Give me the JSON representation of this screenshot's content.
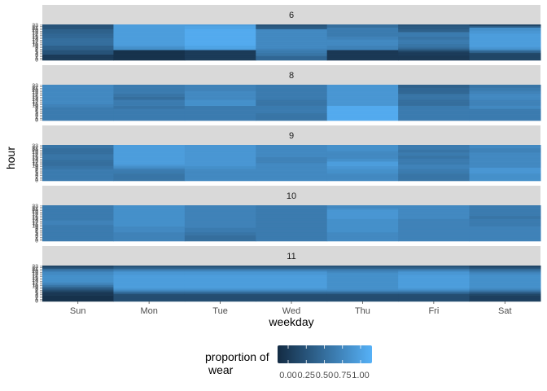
{
  "chart_data": {
    "type": "heatmap",
    "x_label": "weekday",
    "y_label": "hour",
    "x_categories": [
      "Sun",
      "Mon",
      "Tue",
      "Wed",
      "Thu",
      "Fri",
      "Sat"
    ],
    "y_tick_labels": [
      "0",
      "1",
      "2",
      "3",
      "4",
      "5",
      "6",
      "7",
      "8",
      "9",
      "10",
      "11",
      "12",
      "13",
      "14",
      "15",
      "16",
      "17",
      "18",
      "19",
      "20",
      "21",
      "22",
      "23"
    ],
    "legend": {
      "title_line1": "proportion of",
      "title_line2": "wear",
      "position": "bottom",
      "breaks": [
        "0.00",
        "0.25",
        "0.50",
        "0.75",
        "1.00"
      ],
      "color_low": "#132B43",
      "color_high": "#56B1F7",
      "range": [
        0,
        1
      ]
    },
    "facets": [
      {
        "label": "6",
        "values": [
          [
            0.12,
            0.12,
            0.12,
            0.12,
            0.3,
            0.3,
            0.3,
            0.4,
            0.4,
            0.4,
            0.5,
            0.5,
            0.5,
            0.5,
            0.5,
            0.45,
            0.45,
            0.45,
            0.4,
            0.4,
            0.4,
            0.3,
            0.3,
            0.3
          ],
          [
            0.05,
            0.05,
            0.05,
            0.05,
            0.05,
            0.05,
            0.05,
            0.75,
            0.75,
            0.8,
            0.85,
            0.85,
            0.85,
            0.85,
            0.85,
            0.85,
            0.85,
            0.85,
            0.85,
            0.85,
            0.85,
            0.85,
            0.85,
            0.85
          ],
          [
            0.12,
            0.12,
            0.12,
            0.12,
            0.12,
            0.12,
            0.12,
            0.85,
            0.9,
            0.9,
            0.95,
            0.95,
            0.95,
            0.95,
            0.95,
            0.95,
            0.95,
            0.95,
            0.95,
            0.95,
            0.95,
            0.9,
            0.9,
            0.85
          ],
          [
            0.45,
            0.45,
            0.45,
            0.55,
            0.55,
            0.6,
            0.6,
            0.65,
            0.7,
            0.7,
            0.7,
            0.7,
            0.7,
            0.7,
            0.7,
            0.7,
            0.7,
            0.7,
            0.7,
            0.7,
            0.7,
            0.35,
            0.35,
            0.3
          ],
          [
            0.1,
            0.1,
            0.1,
            0.1,
            0.1,
            0.1,
            0.1,
            0.65,
            0.65,
            0.65,
            0.7,
            0.7,
            0.7,
            0.7,
            0.65,
            0.65,
            0.6,
            0.6,
            0.6,
            0.6,
            0.6,
            0.6,
            0.5,
            0.5
          ],
          [
            0.1,
            0.1,
            0.1,
            0.12,
            0.12,
            0.15,
            0.25,
            0.4,
            0.5,
            0.55,
            0.55,
            0.6,
            0.6,
            0.6,
            0.55,
            0.55,
            0.6,
            0.6,
            0.6,
            0.4,
            0.4,
            0.35,
            0.35,
            0.3
          ],
          [
            0.2,
            0.2,
            0.2,
            0.2,
            0.2,
            0.4,
            0.5,
            0.75,
            0.8,
            0.85,
            0.85,
            0.85,
            0.85,
            0.85,
            0.85,
            0.85,
            0.85,
            0.85,
            0.8,
            0.8,
            0.75,
            0.75,
            0.4,
            0.2
          ]
        ]
      },
      {
        "label": "8",
        "values": [
          [
            0.6,
            0.6,
            0.6,
            0.6,
            0.6,
            0.6,
            0.6,
            0.6,
            0.6,
            0.65,
            0.65,
            0.7,
            0.7,
            0.7,
            0.7,
            0.7,
            0.7,
            0.7,
            0.7,
            0.7,
            0.7,
            0.7,
            0.7,
            0.7
          ],
          [
            0.6,
            0.6,
            0.6,
            0.6,
            0.6,
            0.6,
            0.6,
            0.6,
            0.55,
            0.55,
            0.6,
            0.6,
            0.6,
            0.6,
            0.5,
            0.5,
            0.55,
            0.55,
            0.6,
            0.6,
            0.6,
            0.6,
            0.6,
            0.6
          ],
          [
            0.6,
            0.6,
            0.6,
            0.6,
            0.6,
            0.6,
            0.6,
            0.6,
            0.6,
            0.6,
            0.75,
            0.75,
            0.75,
            0.75,
            0.7,
            0.7,
            0.7,
            0.7,
            0.7,
            0.7,
            0.65,
            0.65,
            0.65,
            0.65
          ],
          [
            0.55,
            0.55,
            0.55,
            0.55,
            0.55,
            0.6,
            0.6,
            0.6,
            0.6,
            0.6,
            0.55,
            0.55,
            0.55,
            0.55,
            0.6,
            0.6,
            0.6,
            0.6,
            0.6,
            0.6,
            0.6,
            0.6,
            0.6,
            0.6
          ],
          [
            0.95,
            0.95,
            0.95,
            0.95,
            0.95,
            0.95,
            0.95,
            0.95,
            0.95,
            0.95,
            0.8,
            0.8,
            0.8,
            0.8,
            0.8,
            0.8,
            0.8,
            0.8,
            0.8,
            0.8,
            0.8,
            0.8,
            0.8,
            0.8
          ],
          [
            0.6,
            0.6,
            0.6,
            0.6,
            0.6,
            0.6,
            0.6,
            0.6,
            0.6,
            0.6,
            0.5,
            0.5,
            0.5,
            0.5,
            0.55,
            0.55,
            0.55,
            0.55,
            0.45,
            0.45,
            0.45,
            0.45,
            0.4,
            0.4
          ],
          [
            0.6,
            0.6,
            0.6,
            0.6,
            0.6,
            0.6,
            0.6,
            0.6,
            0.7,
            0.7,
            0.65,
            0.65,
            0.65,
            0.65,
            0.7,
            0.7,
            0.7,
            0.7,
            0.65,
            0.65,
            0.6,
            0.6,
            0.55,
            0.55
          ]
        ]
      },
      {
        "label": "9",
        "values": [
          [
            0.6,
            0.6,
            0.6,
            0.6,
            0.6,
            0.6,
            0.6,
            0.6,
            0.55,
            0.55,
            0.5,
            0.5,
            0.5,
            0.5,
            0.55,
            0.55,
            0.55,
            0.55,
            0.5,
            0.5,
            0.5,
            0.5,
            0.55,
            0.55
          ],
          [
            0.55,
            0.55,
            0.55,
            0.55,
            0.55,
            0.6,
            0.6,
            0.6,
            0.7,
            0.75,
            0.8,
            0.85,
            0.85,
            0.85,
            0.85,
            0.85,
            0.85,
            0.85,
            0.85,
            0.85,
            0.85,
            0.85,
            0.85,
            0.85
          ],
          [
            0.7,
            0.7,
            0.7,
            0.7,
            0.7,
            0.7,
            0.7,
            0.7,
            0.75,
            0.75,
            0.8,
            0.8,
            0.8,
            0.8,
            0.8,
            0.8,
            0.8,
            0.8,
            0.8,
            0.8,
            0.8,
            0.8,
            0.8,
            0.8
          ],
          [
            0.7,
            0.7,
            0.7,
            0.7,
            0.7,
            0.7,
            0.7,
            0.7,
            0.7,
            0.7,
            0.7,
            0.7,
            0.65,
            0.65,
            0.65,
            0.65,
            0.7,
            0.7,
            0.7,
            0.7,
            0.7,
            0.7,
            0.7,
            0.7
          ],
          [
            0.7,
            0.7,
            0.7,
            0.7,
            0.7,
            0.75,
            0.75,
            0.75,
            0.8,
            0.8,
            0.85,
            0.85,
            0.85,
            0.75,
            0.75,
            0.7,
            0.7,
            0.7,
            0.7,
            0.7,
            0.75,
            0.75,
            0.75,
            0.75
          ],
          [
            0.55,
            0.55,
            0.55,
            0.55,
            0.55,
            0.6,
            0.6,
            0.6,
            0.65,
            0.65,
            0.65,
            0.6,
            0.6,
            0.6,
            0.6,
            0.55,
            0.55,
            0.6,
            0.6,
            0.55,
            0.55,
            0.6,
            0.6,
            0.6
          ],
          [
            0.75,
            0.75,
            0.75,
            0.75,
            0.75,
            0.8,
            0.8,
            0.8,
            0.8,
            0.7,
            0.7,
            0.7,
            0.7,
            0.7,
            0.7,
            0.7,
            0.7,
            0.7,
            0.7,
            0.65,
            0.65,
            0.65,
            0.7,
            0.7
          ]
        ]
      },
      {
        "label": "10",
        "values": [
          [
            0.6,
            0.6,
            0.6,
            0.6,
            0.6,
            0.6,
            0.6,
            0.6,
            0.6,
            0.6,
            0.6,
            0.65,
            0.65,
            0.65,
            0.6,
            0.6,
            0.6,
            0.6,
            0.6,
            0.6,
            0.6,
            0.6,
            0.6,
            0.6
          ],
          [
            0.65,
            0.65,
            0.65,
            0.65,
            0.65,
            0.65,
            0.7,
            0.7,
            0.7,
            0.7,
            0.75,
            0.75,
            0.75,
            0.75,
            0.75,
            0.75,
            0.75,
            0.75,
            0.75,
            0.75,
            0.75,
            0.75,
            0.75,
            0.75
          ],
          [
            0.5,
            0.5,
            0.5,
            0.5,
            0.55,
            0.55,
            0.6,
            0.6,
            0.6,
            0.65,
            0.65,
            0.65,
            0.65,
            0.65,
            0.65,
            0.65,
            0.65,
            0.65,
            0.65,
            0.65,
            0.65,
            0.65,
            0.65,
            0.65
          ],
          [
            0.6,
            0.6,
            0.6,
            0.6,
            0.6,
            0.6,
            0.6,
            0.6,
            0.6,
            0.6,
            0.6,
            0.6,
            0.6,
            0.6,
            0.6,
            0.6,
            0.6,
            0.6,
            0.6,
            0.6,
            0.6,
            0.6,
            0.6,
            0.6
          ],
          [
            0.7,
            0.7,
            0.7,
            0.7,
            0.7,
            0.7,
            0.75,
            0.75,
            0.75,
            0.75,
            0.75,
            0.75,
            0.75,
            0.75,
            0.75,
            0.8,
            0.8,
            0.8,
            0.8,
            0.8,
            0.8,
            0.75,
            0.7,
            0.7
          ],
          [
            0.65,
            0.65,
            0.65,
            0.65,
            0.65,
            0.65,
            0.65,
            0.65,
            0.65,
            0.65,
            0.65,
            0.65,
            0.65,
            0.65,
            0.65,
            0.7,
            0.7,
            0.7,
            0.7,
            0.7,
            0.7,
            0.7,
            0.7,
            0.7
          ],
          [
            0.65,
            0.65,
            0.65,
            0.65,
            0.65,
            0.65,
            0.65,
            0.65,
            0.65,
            0.65,
            0.6,
            0.6,
            0.6,
            0.6,
            0.6,
            0.55,
            0.55,
            0.6,
            0.6,
            0.6,
            0.6,
            0.6,
            0.6,
            0.6
          ]
        ]
      },
      {
        "label": "11",
        "values": [
          [
            0.05,
            0.05,
            0.05,
            0.05,
            0.1,
            0.1,
            0.15,
            0.25,
            0.35,
            0.45,
            0.55,
            0.65,
            0.7,
            0.75,
            0.75,
            0.75,
            0.75,
            0.75,
            0.7,
            0.7,
            0.6,
            0.5,
            0.3,
            0.2
          ],
          [
            0.25,
            0.25,
            0.25,
            0.25,
            0.25,
            0.4,
            0.55,
            0.7,
            0.8,
            0.85,
            0.85,
            0.85,
            0.85,
            0.85,
            0.85,
            0.85,
            0.85,
            0.85,
            0.8,
            0.8,
            0.7,
            0.55,
            0.4,
            0.3
          ],
          [
            0.25,
            0.25,
            0.25,
            0.25,
            0.25,
            0.4,
            0.55,
            0.7,
            0.8,
            0.85,
            0.85,
            0.85,
            0.85,
            0.85,
            0.85,
            0.85,
            0.85,
            0.85,
            0.8,
            0.8,
            0.7,
            0.55,
            0.4,
            0.3
          ],
          [
            0.25,
            0.25,
            0.25,
            0.25,
            0.25,
            0.4,
            0.55,
            0.7,
            0.8,
            0.85,
            0.85,
            0.85,
            0.85,
            0.85,
            0.85,
            0.85,
            0.85,
            0.85,
            0.8,
            0.8,
            0.7,
            0.55,
            0.4,
            0.3
          ],
          [
            0.25,
            0.25,
            0.25,
            0.25,
            0.25,
            0.4,
            0.55,
            0.7,
            0.75,
            0.75,
            0.75,
            0.75,
            0.75,
            0.75,
            0.75,
            0.75,
            0.75,
            0.75,
            0.75,
            0.7,
            0.65,
            0.55,
            0.4,
            0.3
          ],
          [
            0.25,
            0.25,
            0.25,
            0.25,
            0.25,
            0.4,
            0.55,
            0.7,
            0.8,
            0.85,
            0.85,
            0.85,
            0.85,
            0.85,
            0.85,
            0.85,
            0.85,
            0.85,
            0.8,
            0.8,
            0.7,
            0.55,
            0.4,
            0.3
          ],
          [
            0.15,
            0.15,
            0.15,
            0.15,
            0.2,
            0.3,
            0.45,
            0.6,
            0.7,
            0.75,
            0.75,
            0.75,
            0.75,
            0.75,
            0.75,
            0.75,
            0.75,
            0.75,
            0.7,
            0.65,
            0.55,
            0.45,
            0.3,
            0.2
          ]
        ]
      }
    ]
  }
}
